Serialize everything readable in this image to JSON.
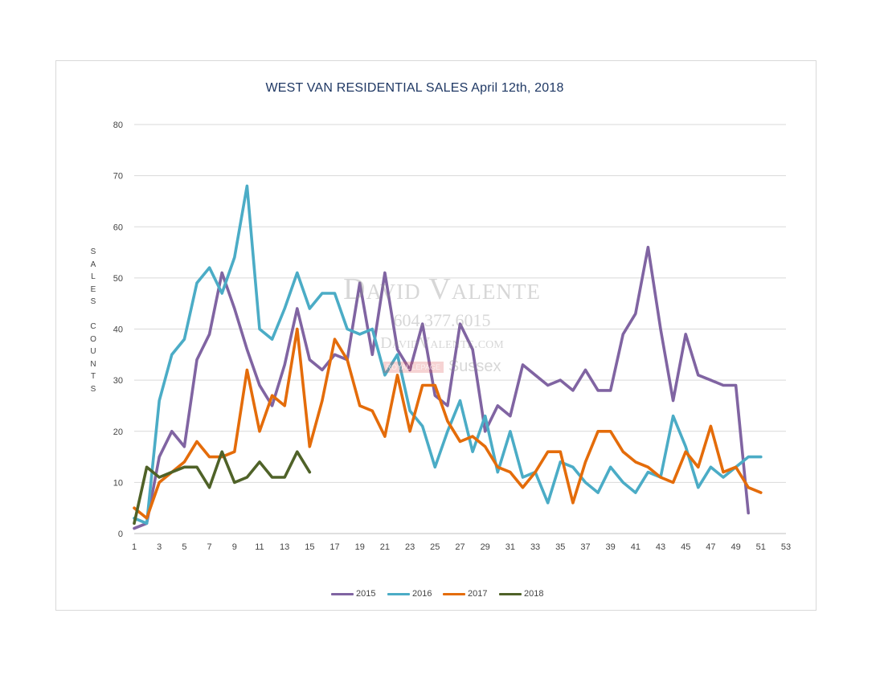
{
  "chart_data": {
    "type": "line",
    "title": "WEST VAN RESIDENTIAL SALES April 12th, 2018",
    "ylabel_letters": [
      "S",
      "A",
      "L",
      "E",
      "S",
      "",
      "C",
      "O",
      "U",
      "N",
      "T",
      "S"
    ],
    "xlabel": "",
    "ylim": [
      0,
      80
    ],
    "yticks": [
      "0",
      "10",
      "20",
      "30",
      "40",
      "50",
      "60",
      "70",
      "80"
    ],
    "xlim": [
      1,
      53
    ],
    "xticks": [
      "1",
      "3",
      "5",
      "7",
      "9",
      "11",
      "13",
      "15",
      "17",
      "19",
      "21",
      "23",
      "25",
      "27",
      "29",
      "31",
      "33",
      "35",
      "37",
      "39",
      "41",
      "43",
      "45",
      "47",
      "49",
      "51",
      "53"
    ],
    "grid": true,
    "legend_position": "bottom",
    "series": [
      {
        "name": "2015",
        "color": "#8064a2",
        "values": [
          1,
          2,
          15,
          20,
          17,
          34,
          39,
          51,
          44,
          36,
          29,
          25,
          33,
          44,
          34,
          32,
          35,
          34,
          49,
          35,
          51,
          36,
          32,
          41,
          27,
          25,
          41,
          36,
          20,
          25,
          23,
          33,
          31,
          29,
          30,
          28,
          32,
          28,
          28,
          39,
          43,
          56,
          40,
          26,
          39,
          31,
          30,
          29,
          29,
          4
        ]
      },
      {
        "name": "2016",
        "color": "#4bacc6",
        "values": [
          3,
          2,
          26,
          35,
          38,
          49,
          52,
          47,
          54,
          68,
          40,
          38,
          44,
          51,
          44,
          47,
          47,
          40,
          39,
          40,
          31,
          35,
          24,
          21,
          13,
          20,
          26,
          16,
          23,
          12,
          20,
          11,
          12,
          6,
          14,
          13,
          10,
          8,
          13,
          10,
          8,
          12,
          11,
          23,
          17,
          9,
          13,
          11,
          13,
          15,
          15
        ]
      },
      {
        "name": "2017",
        "color": "#e46c0a",
        "values": [
          5,
          3,
          10,
          12,
          14,
          18,
          15,
          15,
          16,
          32,
          20,
          27,
          25,
          40,
          17,
          26,
          38,
          34,
          25,
          24,
          19,
          31,
          20,
          29,
          29,
          22,
          18,
          19,
          17,
          13,
          12,
          9,
          12,
          16,
          16,
          6,
          14,
          20,
          20,
          16,
          14,
          13,
          11,
          10,
          16,
          13,
          21,
          12,
          13,
          9,
          8
        ]
      },
      {
        "name": "2018",
        "color": "#4f6228",
        "values": [
          2,
          13,
          11,
          12,
          13,
          13,
          9,
          16,
          10,
          11,
          14,
          11,
          11,
          16,
          12
        ]
      }
    ]
  },
  "watermark": {
    "name": "David Valente",
    "phone": "604.377.6015",
    "site": "DavidValente.com",
    "brand_box": "ROYAL LEPAGE",
    "brand": "Sussex"
  }
}
